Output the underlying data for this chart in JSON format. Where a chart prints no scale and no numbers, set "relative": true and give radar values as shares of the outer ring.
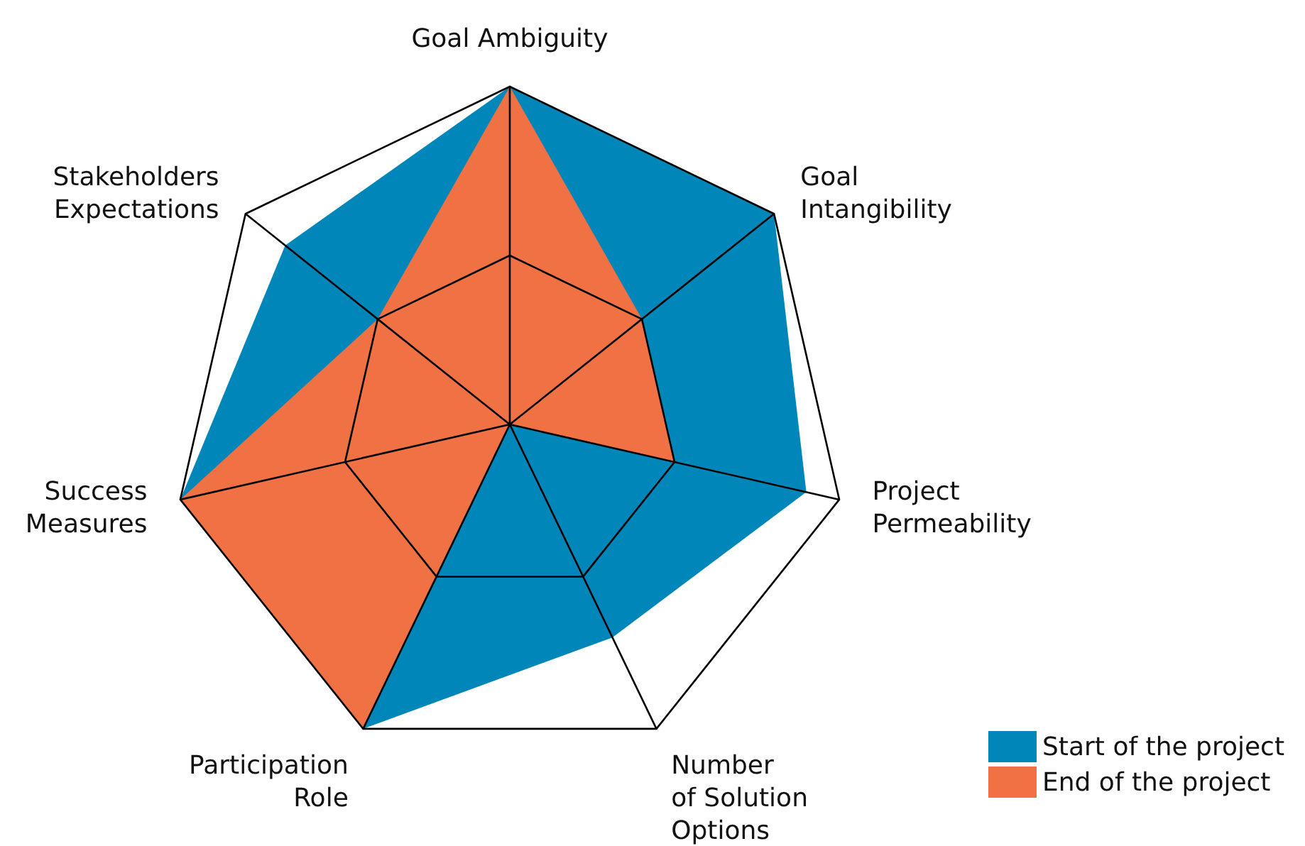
{
  "chart_data": {
    "type": "radar",
    "categories": [
      "Goal Ambiguity",
      "Goal\nIntangibility",
      "Project\nPermeability",
      "Number\nof Solution\nOptions",
      "Participation\nRole",
      "Success\nMeasures",
      "Stakeholders\nExpectations"
    ],
    "relative": true,
    "grid": true,
    "legend": "bottom right",
    "series": [
      {
        "name": "Start of the project",
        "color": "#0086b8",
        "values": [
          1,
          1,
          0.9,
          0.7,
          1,
          1,
          0.85
        ]
      },
      {
        "name": "End of the project",
        "color": "#f07244",
        "values": [
          1,
          0.5,
          0.5,
          0,
          1,
          1,
          0.5
        ]
      }
    ]
  }
}
